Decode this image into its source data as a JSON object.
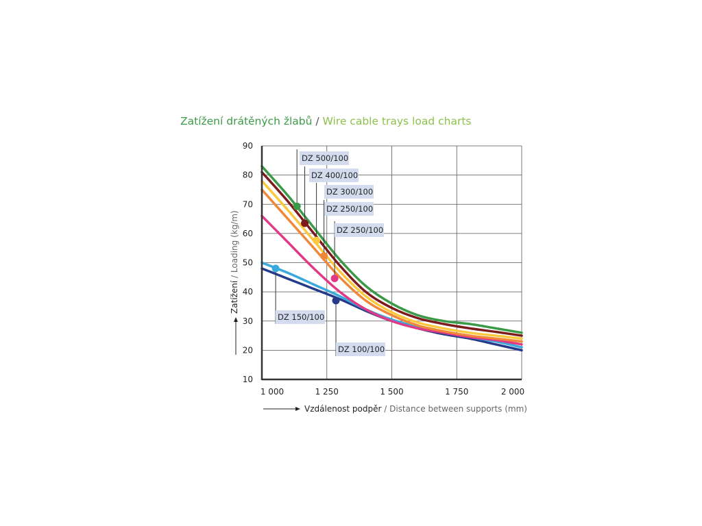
{
  "title": {
    "czech": "Zatížení drátěných žlabů",
    "separator": " / ",
    "english": "Wire cable trays load charts"
  },
  "chart_data": {
    "type": "line",
    "xlabel_czech": "Vzdálenost podpěr",
    "xlabel_english": " / Distance between supports (mm)",
    "ylabel_czech": "Zatížení",
    "ylabel_english": " / Loading (kg/m)",
    "xlim": [
      1000,
      2000
    ],
    "ylim": [
      10,
      90
    ],
    "x_ticks": [
      1000,
      1250,
      1500,
      1750,
      2000
    ],
    "x_tick_labels": [
      "1 000",
      "1 250",
      "1 500",
      "1 750",
      "2 000"
    ],
    "y_ticks": [
      10,
      20,
      30,
      40,
      50,
      60,
      70,
      80,
      90
    ],
    "y_tick_labels": [
      "10",
      "20",
      "30",
      "40",
      "50",
      "60",
      "70",
      "80",
      "90"
    ],
    "grid": true,
    "x": [
      1000,
      1100,
      1200,
      1300,
      1400,
      1500,
      1600,
      1700,
      1800,
      1900,
      2000
    ],
    "series": [
      {
        "name": "DZ 500/100",
        "color": "#3a9a48",
        "values": [
          83,
          73,
          62,
          51,
          42,
          36,
          32,
          30,
          29,
          27.5,
          26
        ],
        "marker": [
          1135,
          69.3
        ]
      },
      {
        "name": "DZ 400/100",
        "color": "#7d1a1c",
        "values": [
          81,
          71,
          60,
          49,
          40,
          34.5,
          31,
          29,
          27.5,
          26.3,
          25
        ],
        "marker": [
          1165,
          63.5
        ]
      },
      {
        "name": "DZ 300/100",
        "color": "#fbc83e",
        "values": [
          78,
          68,
          57.5,
          47,
          38.5,
          33,
          29.5,
          27.5,
          26,
          25,
          24
        ],
        "marker": [
          1210,
          57.6
        ]
      },
      {
        "name": "DZ 250/100",
        "color": "#f0883a",
        "values": [
          75,
          65,
          55,
          45,
          37,
          32,
          28.5,
          26.5,
          25,
          24,
          23
        ],
        "marker": [
          1239,
          52.3
        ]
      },
      {
        "name": "DZ 250/100",
        "color": "#e03a86",
        "values": [
          66,
          57,
          48,
          40,
          34,
          30,
          27.5,
          26,
          24.5,
          23.5,
          22
        ],
        "marker": [
          1280,
          44.6
        ]
      },
      {
        "name": "DZ 150/100",
        "color": "#3aa9dd",
        "values": [
          50,
          46.5,
          42.5,
          38.5,
          34,
          30.5,
          28,
          26,
          24.5,
          23,
          21
        ],
        "marker": [
          1053,
          48
        ]
      },
      {
        "name": "DZ 100/100",
        "color": "#263a8a",
        "values": [
          48,
          44.5,
          41,
          37.5,
          33.5,
          30,
          27.5,
          25.5,
          24,
          22,
          20
        ],
        "marker": [
          1285,
          37
        ]
      }
    ]
  }
}
